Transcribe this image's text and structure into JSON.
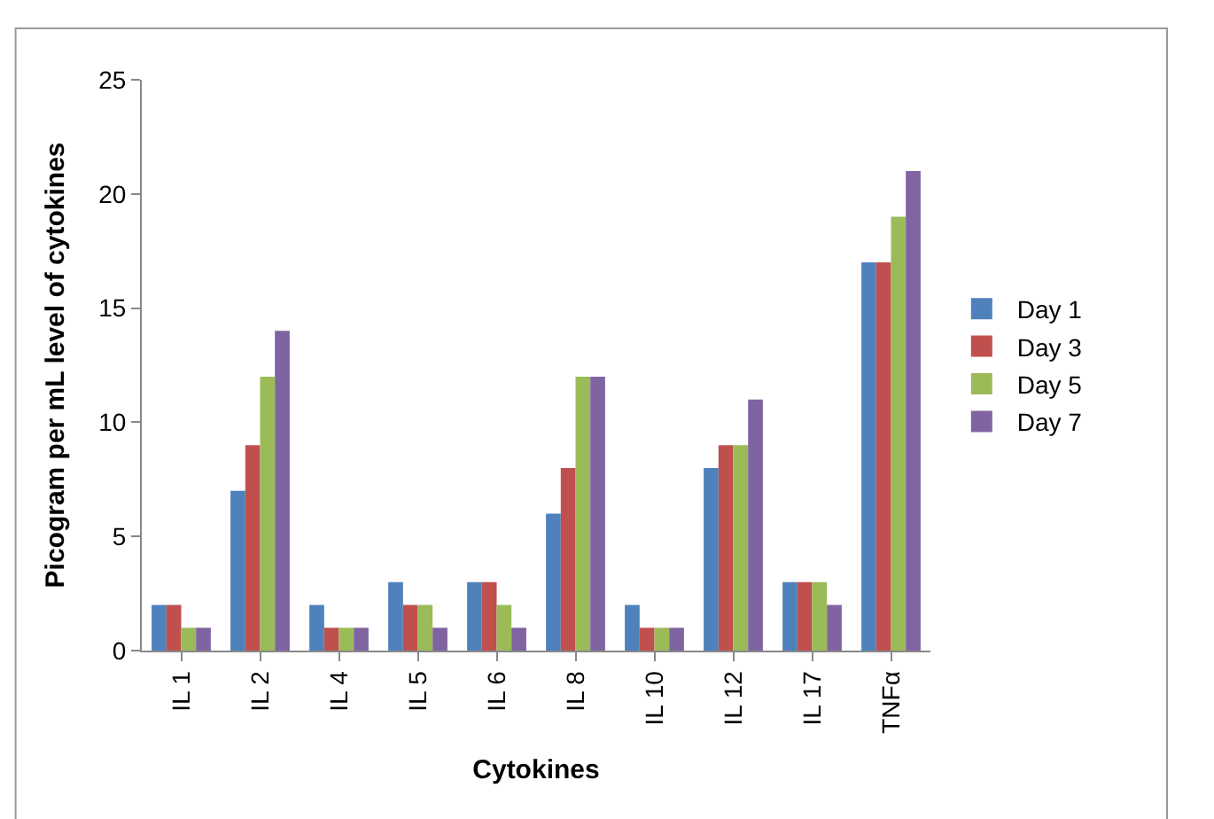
{
  "chart_data": {
    "type": "bar",
    "xlabel": "Cytokines",
    "ylabel": "Picogram per mL level of cytokines",
    "categories": [
      "IL 1",
      "IL 2",
      "IL 4",
      "IL 5",
      "IL 6",
      "IL 8",
      "IL 10",
      "IL 12",
      "IL 17",
      "TNFα"
    ],
    "series": [
      {
        "name": "Day 1",
        "color": "#4f81bd",
        "values": [
          2,
          7,
          2,
          3,
          3,
          6,
          2,
          8,
          3,
          17
        ]
      },
      {
        "name": "Day 3",
        "color": "#c0504d",
        "values": [
          2,
          9,
          1,
          2,
          3,
          8,
          1,
          9,
          3,
          17
        ]
      },
      {
        "name": "Day 5",
        "color": "#9bbb59",
        "values": [
          1,
          12,
          1,
          2,
          2,
          12,
          1,
          9,
          3,
          19
        ]
      },
      {
        "name": "Day 7",
        "color": "#8064a2",
        "values": [
          1,
          14,
          1,
          1,
          1,
          12,
          1,
          11,
          2,
          21
        ]
      }
    ],
    "ylim": [
      0,
      25
    ],
    "yticks": [
      0,
      5,
      10,
      15,
      20,
      25
    ],
    "legend": "right"
  }
}
